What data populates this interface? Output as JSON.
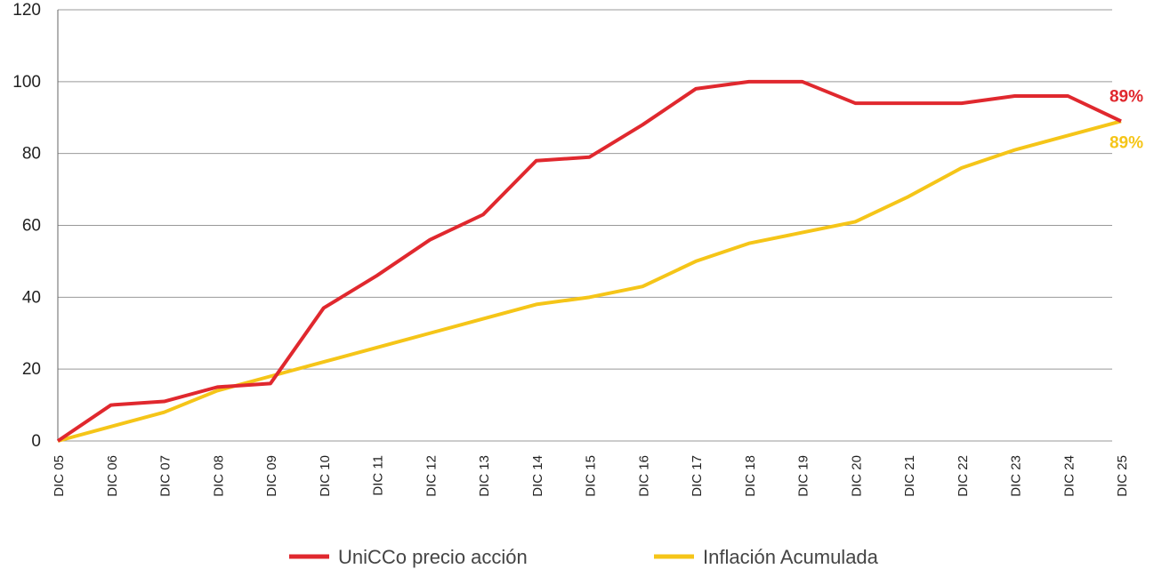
{
  "chart_data": {
    "type": "line",
    "categories": [
      "DIC 05",
      "DIC 06",
      "DIC 07",
      "DIC 08",
      "DIC 09",
      "DIC 10",
      "DIC 11",
      "DIC 12",
      "DIC 13",
      "DIC 14",
      "DIC 15",
      "DIC 16",
      "DIC 17",
      "DIC 18",
      "DIC 19",
      "DIC 20",
      "DIC 21",
      "DIC 22",
      "DIC 23",
      "DIC 24",
      "DIC 25"
    ],
    "series": [
      {
        "name": "UniCCo precio acción",
        "color": "#e0282e",
        "values": [
          0,
          10,
          11,
          15,
          16,
          37,
          46,
          56,
          63,
          78,
          79,
          88,
          98,
          100,
          100,
          94,
          94,
          94,
          96,
          96,
          89
        ]
      },
      {
        "name": "Inflación Acumulada",
        "color": "#f5c518",
        "values": [
          0,
          4,
          8,
          14,
          18,
          22,
          26,
          30,
          34,
          38,
          40,
          43,
          50,
          55,
          58,
          61,
          68,
          76,
          81,
          85,
          89
        ]
      }
    ],
    "annotations": [
      {
        "text": "89%",
        "color": "#e0282e"
      },
      {
        "text": "89%",
        "color": "#f5c518"
      }
    ],
    "ylim": [
      0,
      120
    ],
    "yticks": [
      0,
      20,
      40,
      60,
      80,
      100,
      120
    ],
    "grid": true
  }
}
